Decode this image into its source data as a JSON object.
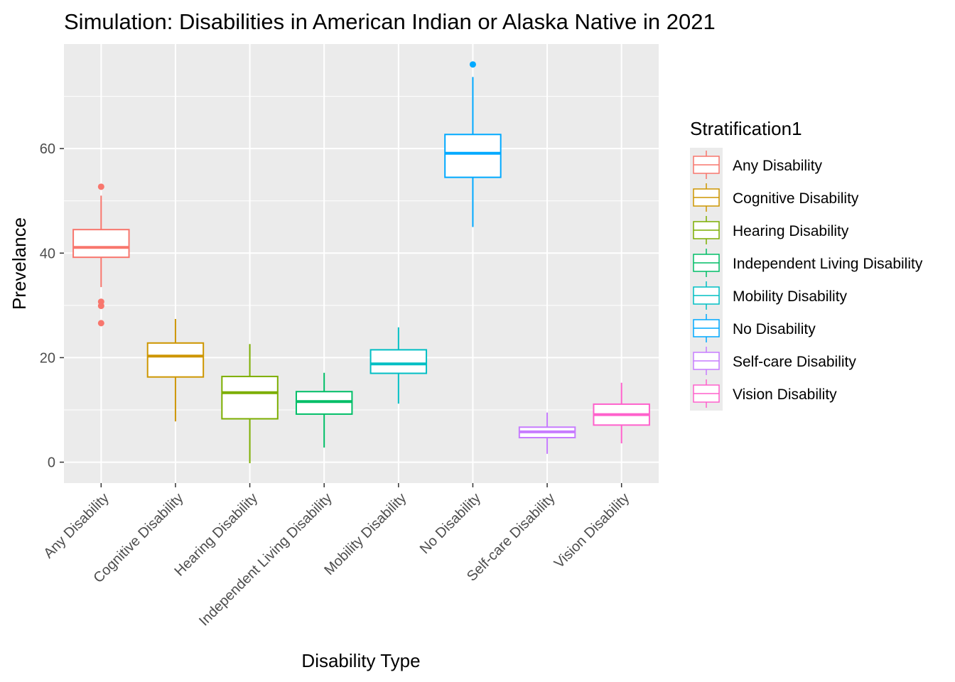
{
  "chart_data": {
    "type": "box",
    "title": "Simulation: Disabilities in American Indian or Alaska Native in 2021",
    "xlabel": "Disability Type",
    "ylabel": "Prevelance",
    "ylim": [
      -4,
      80
    ],
    "yticks": [
      0,
      20,
      40,
      60
    ],
    "grid": true,
    "legend": {
      "title": "Stratification1",
      "position": "right"
    },
    "categories": [
      "Any Disability",
      "Cognitive Disability",
      "Hearing Disability",
      "Independent Living Disability",
      "Mobility Disability",
      "No Disability",
      "Self-care Disability",
      "Vision Disability"
    ],
    "series": [
      {
        "name": "Any Disability",
        "color": "#F8766D",
        "min": 33.5,
        "q1": 39.2,
        "median": 41.1,
        "q3": 44.5,
        "max": 51.0,
        "outliers": [
          52.7,
          30.7,
          29.9,
          26.6
        ]
      },
      {
        "name": "Cognitive Disability",
        "color": "#CD9600",
        "min": 7.8,
        "q1": 16.3,
        "median": 20.3,
        "q3": 22.8,
        "max": 27.4,
        "outliers": []
      },
      {
        "name": "Hearing Disability",
        "color": "#7CAE00",
        "min": -0.2,
        "q1": 8.3,
        "median": 13.3,
        "q3": 16.4,
        "max": 22.6,
        "outliers": []
      },
      {
        "name": "Independent Living Disability",
        "color": "#00BE67",
        "min": 2.8,
        "q1": 9.2,
        "median": 11.6,
        "q3": 13.5,
        "max": 17.1,
        "outliers": []
      },
      {
        "name": "Mobility Disability",
        "color": "#00BFC4",
        "min": 11.2,
        "q1": 17.0,
        "median": 18.8,
        "q3": 21.5,
        "max": 25.8,
        "outliers": []
      },
      {
        "name": "No Disability",
        "color": "#00A9FF",
        "min": 45.0,
        "q1": 54.5,
        "median": 59.1,
        "q3": 62.7,
        "max": 73.7,
        "outliers": [
          76.1
        ]
      },
      {
        "name": "Self-care Disability",
        "color": "#C77CFF",
        "min": 1.6,
        "q1": 4.7,
        "median": 5.8,
        "q3": 6.7,
        "max": 9.5,
        "outliers": []
      },
      {
        "name": "Vision Disability",
        "color": "#FF61CC",
        "min": 3.6,
        "q1": 7.1,
        "median": 9.1,
        "q3": 11.1,
        "max": 15.2,
        "outliers": []
      }
    ]
  }
}
